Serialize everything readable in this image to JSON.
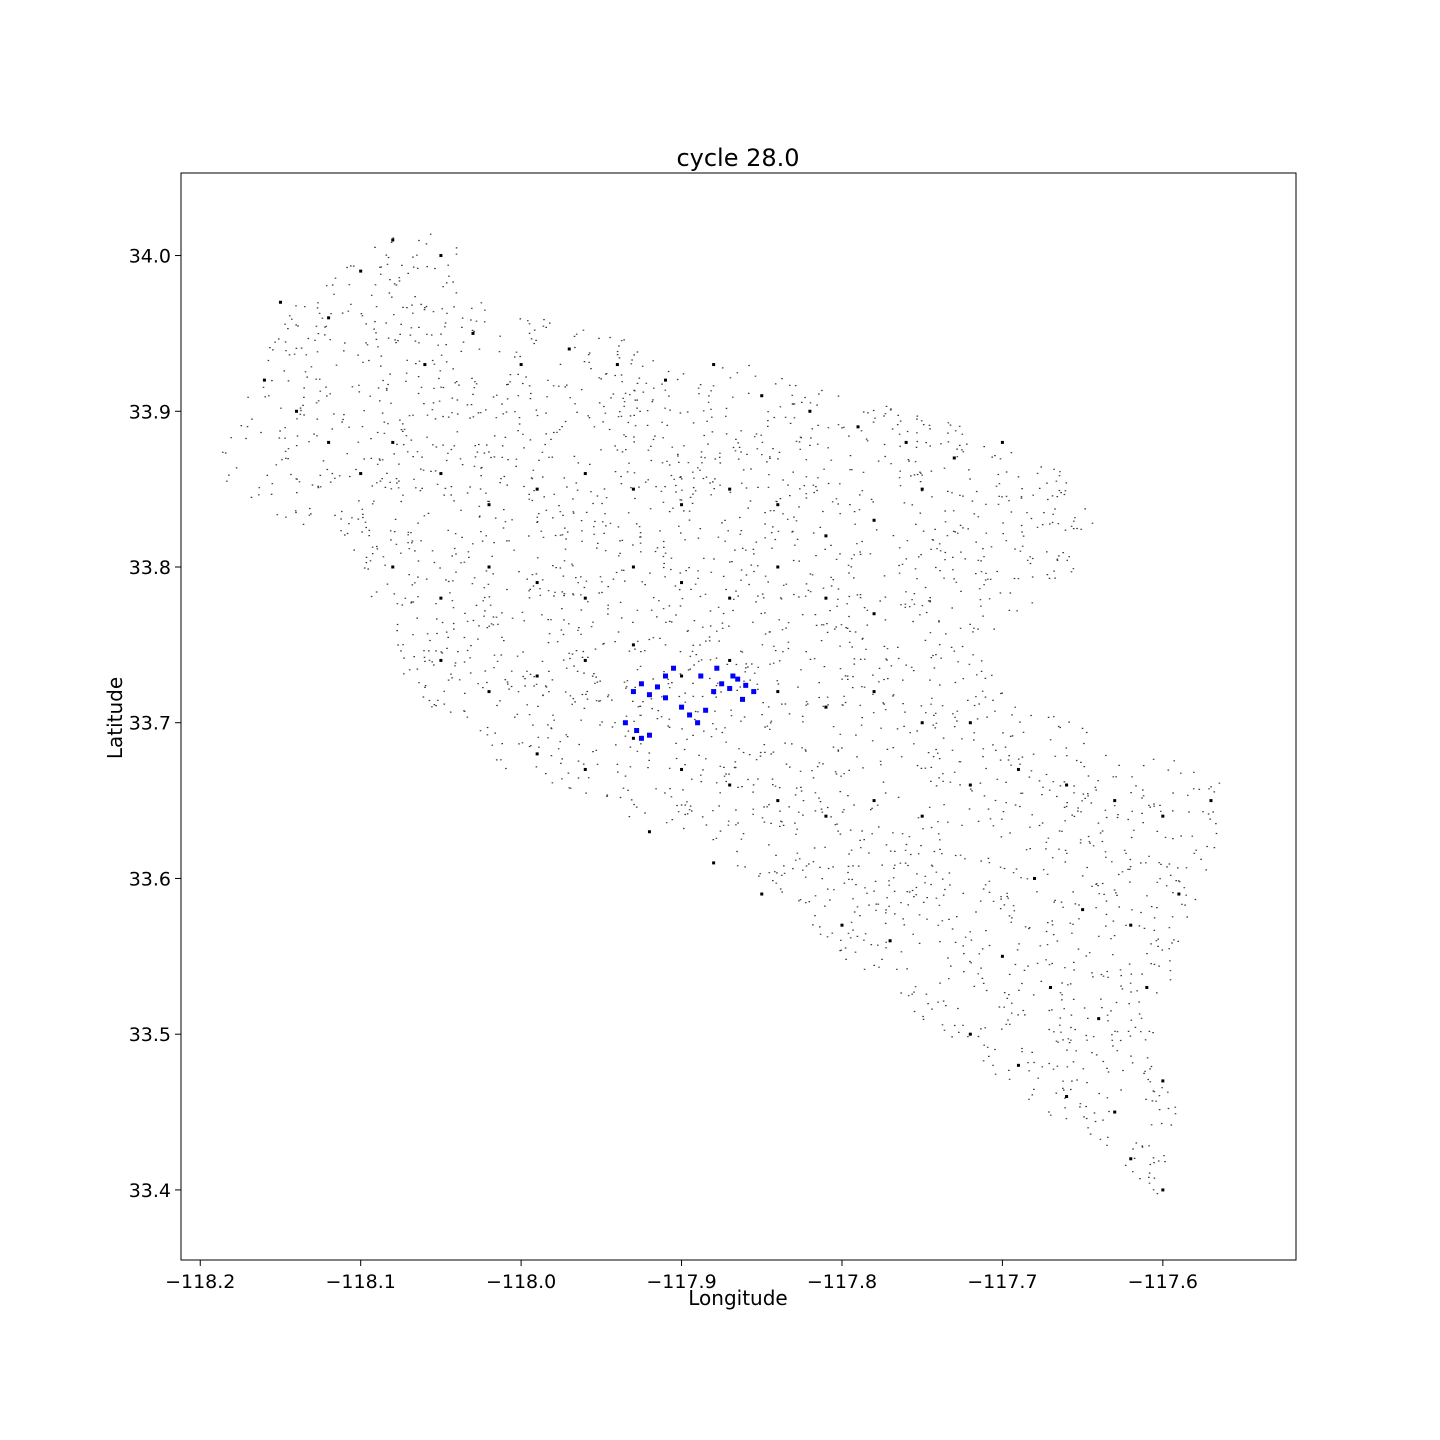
{
  "chart_data": {
    "type": "scatter",
    "title": "cycle 28.0",
    "xlabel": "Longitude",
    "ylabel": "Latitude",
    "xlim": [
      -118.212,
      -117.517
    ],
    "ylim": [
      33.355,
      34.053
    ],
    "xticks": [
      -118.2,
      -118.1,
      -118.0,
      -117.9,
      -117.8,
      -117.7,
      -117.6
    ],
    "yticks": [
      33.4,
      33.5,
      33.6,
      33.7,
      33.8,
      33.9,
      34.0
    ],
    "xtick_labels": [
      "−118.2",
      "−118.1",
      "−118.0",
      "−117.9",
      "−117.8",
      "−117.7",
      "−117.6"
    ],
    "ytick_labels": [
      "33.4",
      "33.5",
      "33.6",
      "33.7",
      "33.8",
      "33.9",
      "34.0"
    ],
    "grid": false,
    "series": [
      {
        "color": "#000000",
        "description_points": "building footprints (dense point cloud), sampled outline of the mapped region",
        "points": [
          [
            -118.15,
            33.97
          ],
          [
            -118.12,
            33.96
          ],
          [
            -118.1,
            33.99
          ],
          [
            -118.08,
            34.01
          ],
          [
            -118.05,
            34.0
          ],
          [
            -118.16,
            33.92
          ],
          [
            -118.14,
            33.9
          ],
          [
            -118.12,
            33.88
          ],
          [
            -118.1,
            33.86
          ],
          [
            -118.08,
            33.88
          ],
          [
            -118.06,
            33.93
          ],
          [
            -118.03,
            33.95
          ],
          [
            -118.0,
            33.93
          ],
          [
            -117.97,
            33.94
          ],
          [
            -117.94,
            33.93
          ],
          [
            -117.91,
            33.92
          ],
          [
            -117.88,
            33.93
          ],
          [
            -117.85,
            33.91
          ],
          [
            -117.82,
            33.9
          ],
          [
            -117.79,
            33.89
          ],
          [
            -117.76,
            33.88
          ],
          [
            -117.73,
            33.87
          ],
          [
            -117.7,
            33.88
          ],
          [
            -118.05,
            33.86
          ],
          [
            -118.02,
            33.84
          ],
          [
            -117.99,
            33.85
          ],
          [
            -117.96,
            33.86
          ],
          [
            -117.93,
            33.85
          ],
          [
            -117.9,
            33.84
          ],
          [
            -117.87,
            33.85
          ],
          [
            -117.84,
            33.84
          ],
          [
            -117.81,
            33.82
          ],
          [
            -117.78,
            33.83
          ],
          [
            -117.75,
            33.85
          ],
          [
            -118.08,
            33.8
          ],
          [
            -118.05,
            33.78
          ],
          [
            -118.02,
            33.8
          ],
          [
            -117.99,
            33.79
          ],
          [
            -117.96,
            33.78
          ],
          [
            -117.93,
            33.8
          ],
          [
            -117.9,
            33.79
          ],
          [
            -117.87,
            33.78
          ],
          [
            -117.84,
            33.8
          ],
          [
            -117.81,
            33.78
          ],
          [
            -117.78,
            33.77
          ],
          [
            -118.05,
            33.74
          ],
          [
            -118.02,
            33.72
          ],
          [
            -117.99,
            33.73
          ],
          [
            -117.96,
            33.74
          ],
          [
            -117.93,
            33.75
          ],
          [
            -117.9,
            33.73
          ],
          [
            -117.87,
            33.74
          ],
          [
            -117.84,
            33.72
          ],
          [
            -117.81,
            33.71
          ],
          [
            -117.78,
            33.72
          ],
          [
            -117.75,
            33.7
          ],
          [
            -117.72,
            33.7
          ],
          [
            -117.99,
            33.68
          ],
          [
            -117.96,
            33.67
          ],
          [
            -117.93,
            33.69
          ],
          [
            -117.9,
            33.67
          ],
          [
            -117.87,
            33.66
          ],
          [
            -117.84,
            33.65
          ],
          [
            -117.81,
            33.64
          ],
          [
            -117.78,
            33.65
          ],
          [
            -117.75,
            33.64
          ],
          [
            -117.72,
            33.66
          ],
          [
            -117.69,
            33.67
          ],
          [
            -117.66,
            33.66
          ],
          [
            -117.63,
            33.65
          ],
          [
            -117.6,
            33.64
          ],
          [
            -117.57,
            33.65
          ],
          [
            -117.68,
            33.6
          ],
          [
            -117.65,
            33.58
          ],
          [
            -117.62,
            33.57
          ],
          [
            -117.59,
            33.59
          ],
          [
            -117.7,
            33.55
          ],
          [
            -117.67,
            33.53
          ],
          [
            -117.64,
            33.51
          ],
          [
            -117.61,
            33.53
          ],
          [
            -117.72,
            33.5
          ],
          [
            -117.69,
            33.48
          ],
          [
            -117.66,
            33.46
          ],
          [
            -117.63,
            33.45
          ],
          [
            -117.6,
            33.47
          ],
          [
            -117.62,
            33.42
          ],
          [
            -117.6,
            33.4
          ],
          [
            -117.92,
            33.63
          ],
          [
            -117.88,
            33.61
          ],
          [
            -117.85,
            33.59
          ],
          [
            -117.8,
            33.57
          ],
          [
            -117.77,
            33.56
          ]
        ]
      },
      {
        "color": "#0000ff",
        "description_points": "highlighted points (blue)",
        "points": [
          [
            -117.93,
            33.72
          ],
          [
            -117.925,
            33.725
          ],
          [
            -117.92,
            33.718
          ],
          [
            -117.915,
            33.723
          ],
          [
            -117.91,
            33.716
          ],
          [
            -117.928,
            33.695
          ],
          [
            -117.925,
            33.69
          ],
          [
            -117.92,
            33.692
          ],
          [
            -117.935,
            33.7
          ],
          [
            -117.9,
            33.71
          ],
          [
            -117.895,
            33.705
          ],
          [
            -117.89,
            33.7
          ],
          [
            -117.885,
            33.708
          ],
          [
            -117.88,
            33.72
          ],
          [
            -117.875,
            33.725
          ],
          [
            -117.87,
            33.722
          ],
          [
            -117.865,
            33.728
          ],
          [
            -117.86,
            33.724
          ],
          [
            -117.855,
            33.72
          ],
          [
            -117.868,
            33.73
          ],
          [
            -117.878,
            33.735
          ],
          [
            -117.888,
            33.73
          ],
          [
            -117.91,
            33.73
          ],
          [
            -117.905,
            33.735
          ],
          [
            -117.862,
            33.715
          ]
        ]
      }
    ]
  }
}
